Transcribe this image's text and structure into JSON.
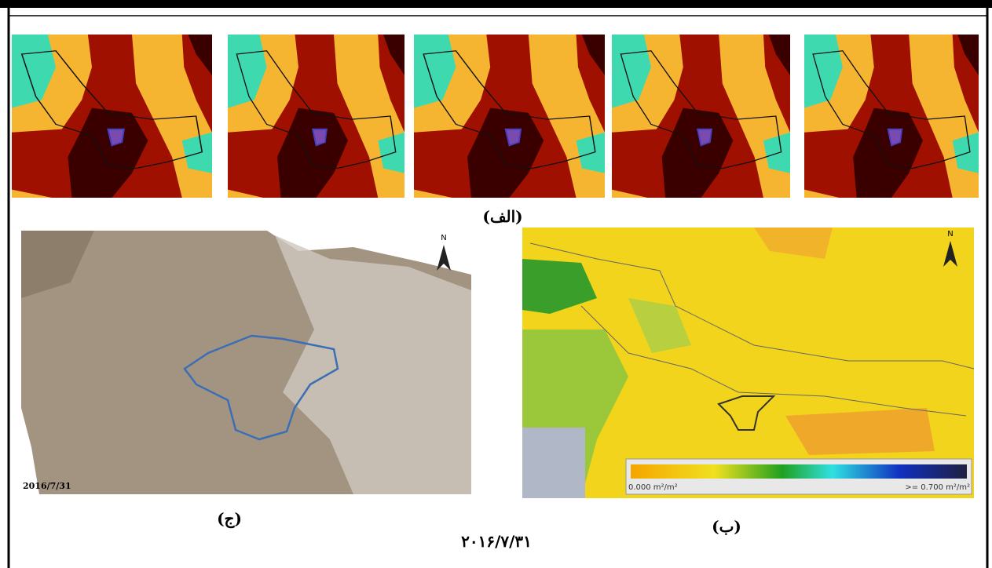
{
  "top_row": {
    "label": "(الف)"
  },
  "satellite": {
    "label": "(ج)",
    "date": "2016/7/31",
    "north": "N"
  },
  "lai_map": {
    "label": "(ب)",
    "north": "N",
    "legend": {
      "min_label": "0.000 m²/m²",
      "max_label": ">= 0.700 m²/m²"
    }
  },
  "caption": "۲۰۱۶/۷/۳۱"
}
